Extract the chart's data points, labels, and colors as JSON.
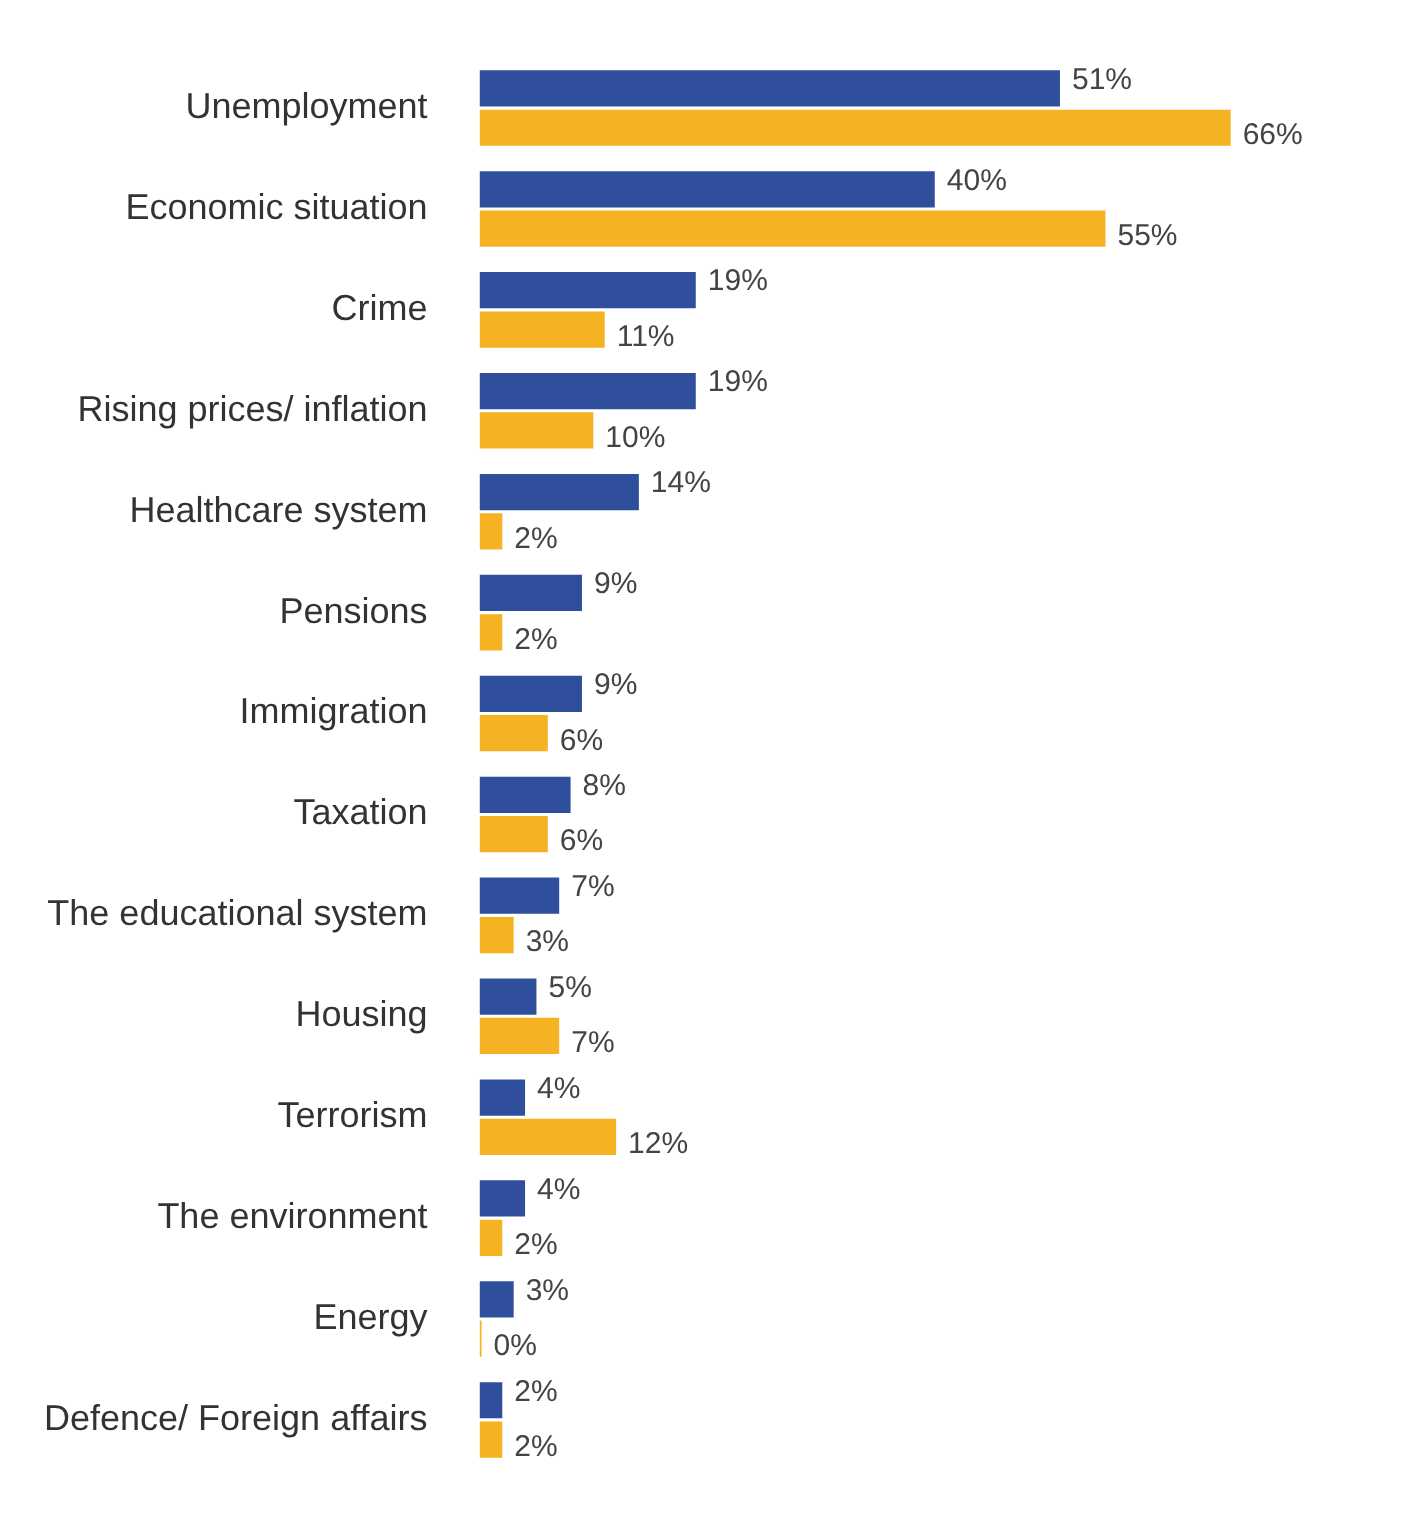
{
  "chart_data": {
    "type": "bar",
    "orientation": "horizontal",
    "categories": [
      "Unemployment",
      "Economic situation",
      "Crime",
      "Rising prices/ inflation",
      "Healthcare system",
      "Pensions",
      "Immigration",
      "Taxation",
      "The educational system",
      "Housing",
      "Terrorism",
      "The environment",
      "Energy",
      "Defence/ Foreign affairs"
    ],
    "series": [
      {
        "color": "#2f4f9c",
        "values": [
          51,
          40,
          19,
          19,
          14,
          9,
          9,
          8,
          7,
          5,
          4,
          4,
          3,
          2
        ],
        "value_labels": [
          "51%",
          "40%",
          "19%",
          "19%",
          "14%",
          "9%",
          "9%",
          "8%",
          "7%",
          "5%",
          "4%",
          "4%",
          "3%",
          "2%"
        ]
      },
      {
        "color": "#f5b324",
        "values": [
          66,
          55,
          11,
          10,
          2,
          2,
          6,
          6,
          3,
          7,
          12,
          2,
          0,
          2
        ],
        "value_labels": [
          "66%",
          "55%",
          "11%",
          "10%",
          "2%",
          "2%",
          "6%",
          "6%",
          "3%",
          "7%",
          "12%",
          "2%",
          "0%",
          "2%"
        ]
      }
    ],
    "legend": false,
    "grid": false
  }
}
